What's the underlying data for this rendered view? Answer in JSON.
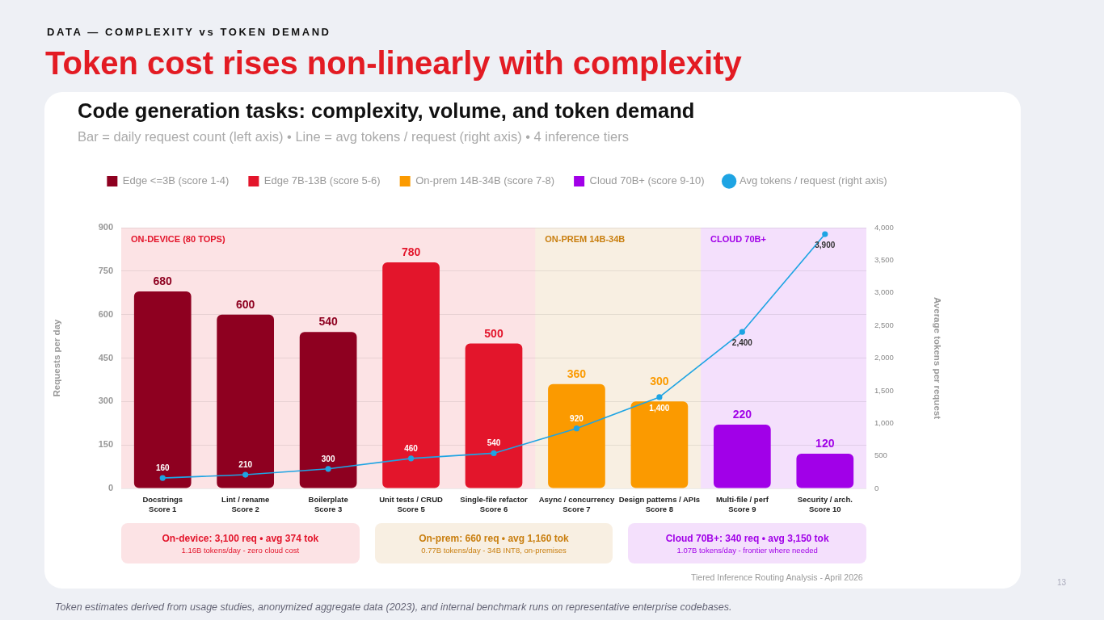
{
  "chart_data": {
    "type": "bar",
    "title": "Code generation tasks: complexity, volume, and token demand",
    "subtitle": "Bar = daily request count (left axis) • Line = avg tokens / request (right axis) • 4 inference tiers",
    "categories": [
      "Docstrings\nScore 1",
      "Lint / rename\nScore 2",
      "Boilerplate\nScore 3",
      "Unit tests / CRUD\nScore 5",
      "Single-file refactor\nScore 6",
      "Async / concurrency\nScore 7",
      "Design patterns / APIs\nScore 8",
      "Multi-file / perf\nScore 9",
      "Security / arch.\nScore 10"
    ],
    "series": [
      {
        "name": "Edge <=3B (score 1-4)",
        "color": "#8e0020",
        "values": [
          680,
          600,
          540,
          null,
          null,
          null,
          null,
          null,
          null
        ],
        "value_labels": [
          "680",
          "600",
          "540",
          null,
          null,
          null,
          null,
          null,
          null
        ]
      },
      {
        "name": "Edge 7B-13B (score 5-6)",
        "color": "#e3152b",
        "values": [
          null,
          null,
          null,
          780,
          500,
          null,
          null,
          null,
          null
        ],
        "value_labels": [
          null,
          null,
          null,
          "780",
          "500",
          null,
          null,
          null,
          null
        ]
      },
      {
        "name": "On-prem 14B-34B (score 7-8)",
        "color": "#fb9a00",
        "values": [
          null,
          null,
          null,
          null,
          null,
          360,
          300,
          null,
          null
        ],
        "value_labels": [
          null,
          null,
          null,
          null,
          null,
          "360",
          "300",
          null,
          null
        ]
      },
      {
        "name": "Cloud 70B+ (score 9-10)",
        "color": "#a100e8",
        "values": [
          null,
          null,
          null,
          null,
          null,
          null,
          null,
          220,
          120
        ],
        "value_labels": [
          null,
          null,
          null,
          null,
          null,
          null,
          null,
          "220",
          "120"
        ]
      },
      {
        "name": "Avg tokens / request (right axis)",
        "type": "line",
        "axis": "y2",
        "color": "#1ea4e3",
        "values": [
          160,
          210,
          300,
          460,
          540,
          920,
          1400,
          2400,
          3900
        ],
        "value_labels": [
          "160",
          "210",
          "300",
          "460",
          "540",
          "920",
          "1,400",
          "2,400",
          "3,900"
        ]
      }
    ],
    "ylabel": "Requests per day",
    "y2label": "Average tokens per request",
    "ylim": [
      0,
      900
    ],
    "yticks": [
      0,
      150,
      300,
      450,
      600,
      750,
      900
    ],
    "y2lim": [
      0,
      4000
    ],
    "y2ticks": [
      0,
      500,
      {
        "value": 1000,
        "label": "1,000"
      },
      {
        "value": 1500,
        "label": "1,500"
      },
      {
        "value": 2000,
        "label": "2,000"
      },
      {
        "value": 2500,
        "label": "2,500"
      },
      {
        "value": 3000,
        "label": "3,000"
      },
      {
        "value": 3500,
        "label": "3,500"
      },
      {
        "value": 4000,
        "label": "4,000"
      }
    ],
    "grid": "y",
    "legend": "top",
    "marker": "circle",
    "bands": [
      {
        "axis": "x",
        "from": "Docstrings\nScore 1",
        "to": "Single-file refactor\nScore 6",
        "label": "ON-DEVICE (80 TOPS)",
        "color": "#e3152b"
      },
      {
        "axis": "x",
        "from": "Async / concurrency\nScore 7",
        "to": "Design patterns / APIs\nScore 8",
        "label": "ON-PREM 14B-34B",
        "color": "#c97f10"
      },
      {
        "axis": "x",
        "from": "Multi-file / perf\nScore 9",
        "to": "Security / arch.\nScore 10",
        "label": "CLOUD 70B+",
        "color": "#a100e8"
      }
    ],
    "annotations": [
      "DATA — COMPLEXITY vs TOKEN DEMAND",
      "Token cost rises non-linearly with complexity",
      "On-device: 3,100 req • avg 374 tok\n1.16B tokens/day - zero cloud cost",
      "On-prem: 660 req • avg 1,160 tok\n0.77B tokens/day - 34B INT8, on-premises",
      "Cloud 70B+: 340 req • avg 3,150 tok\n1.07B tokens/day - frontier where needed",
      "Tiered Inference Routing Analysis - April 2026",
      "Token estimates derived from usage studies, anonymized aggregate data (2023), and internal benchmark runs on representative enterprise codebases.",
      "13"
    ]
  }
}
